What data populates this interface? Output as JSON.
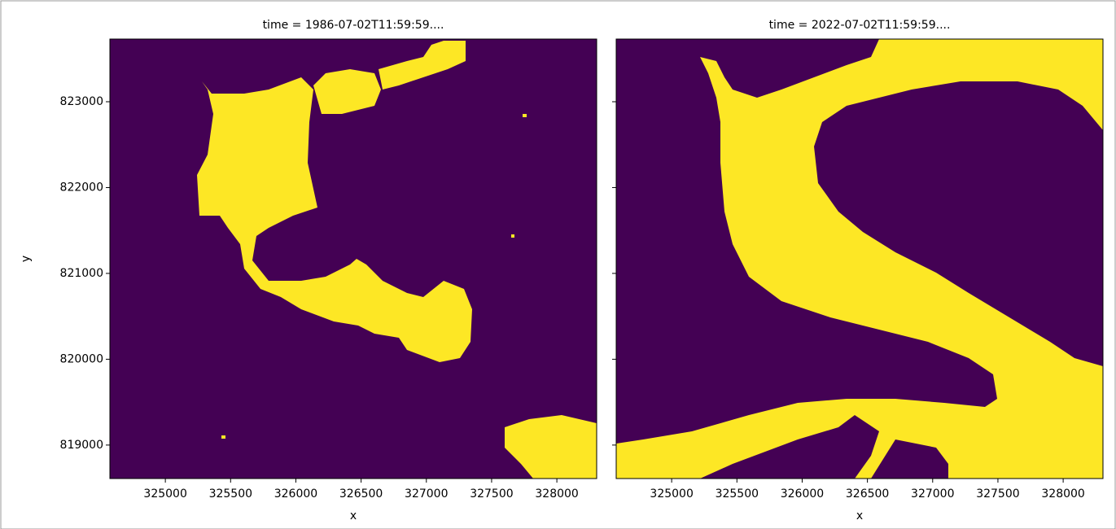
{
  "chart_data": [
    {
      "type": "image",
      "title": "time = 1986-07-02T11:59:59....",
      "x_label": "x",
      "y_label": "y",
      "xlim": [
        324575,
        328305
      ],
      "ylim": [
        818610,
        823730
      ],
      "xticks": [
        325000,
        325500,
        326000,
        326500,
        327000,
        327500,
        328000
      ],
      "yticks": [
        819000,
        820000,
        821000,
        822000,
        823000
      ],
      "colors": [
        "#440154",
        "#fde725"
      ]
    },
    {
      "type": "image",
      "title": "time = 2022-07-02T11:59:59....",
      "x_label": "x",
      "sharey": true,
      "xlim": [
        324575,
        328305
      ],
      "ylim": [
        818610,
        823730
      ],
      "xticks": [
        325000,
        325500,
        326000,
        326500,
        327000,
        327500,
        328000
      ],
      "colors": [
        "#440154",
        "#fde725"
      ]
    }
  ]
}
